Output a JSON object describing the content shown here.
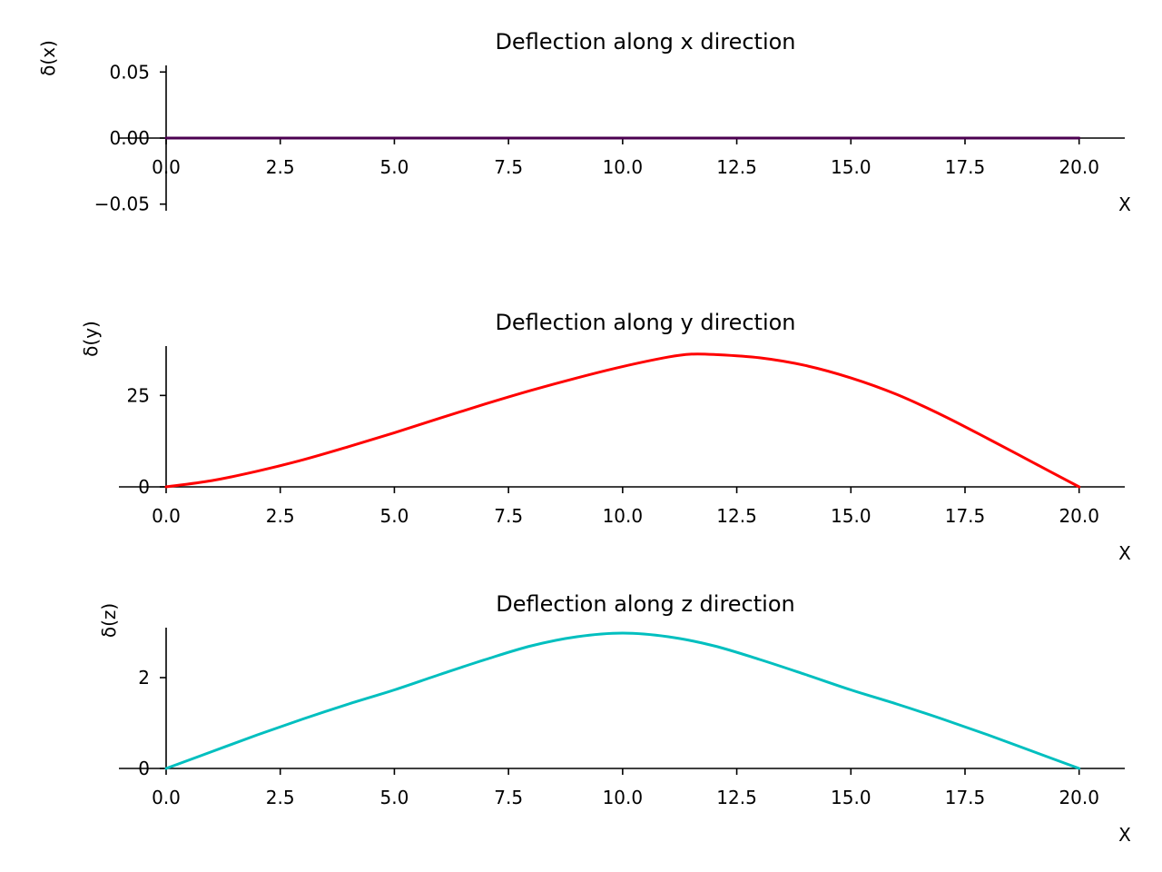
{
  "chart_data": [
    {
      "type": "line",
      "title": "Deflection along x direction",
      "xlabel": "X",
      "ylabel": "δ(x)",
      "xlim": [
        0,
        21
      ],
      "ylim": [
        -0.055,
        0.055
      ],
      "x_ticks": [
        0,
        2.5,
        5,
        7.5,
        10,
        12.5,
        15,
        17.5,
        20
      ],
      "x_tick_labels": [
        "0.0",
        "2.5",
        "5.0",
        "7.5",
        "10.0",
        "12.5",
        "15.0",
        "17.5",
        "20.0"
      ],
      "y_ticks": [
        -0.05,
        0,
        0.05
      ],
      "y_tick_labels": [
        "−0.05",
        "0.00",
        "0.05"
      ],
      "grid": false,
      "series": [
        {
          "color": "#4b0050",
          "x": [
            0,
            2.5,
            5,
            7.5,
            10,
            12.5,
            15,
            17.5,
            20
          ],
          "y": [
            0,
            0,
            0,
            0,
            0,
            0,
            0,
            0,
            0
          ]
        }
      ]
    },
    {
      "type": "line",
      "title": "Deflection along y direction",
      "xlabel": "X",
      "ylabel": "δ(y)",
      "xlim": [
        0,
        21
      ],
      "ylim": [
        0,
        38.5
      ],
      "x_ticks": [
        0,
        2.5,
        5,
        7.5,
        10,
        12.5,
        15,
        17.5,
        20
      ],
      "x_tick_labels": [
        "0.0",
        "2.5",
        "5.0",
        "7.5",
        "10.0",
        "12.5",
        "15.0",
        "17.5",
        "20.0"
      ],
      "y_ticks": [
        0,
        25
      ],
      "y_tick_labels": [
        "0",
        "25"
      ],
      "grid": false,
      "series": [
        {
          "color": "#ff0000",
          "x": [
            0,
            1,
            2,
            3,
            4,
            5,
            6,
            7,
            8,
            9,
            10,
            11,
            11.5,
            12,
            13,
            14,
            15,
            16,
            17,
            18,
            19,
            20
          ],
          "y": [
            0,
            1.7,
            4.3,
            7.4,
            11.0,
            14.8,
            18.8,
            22.7,
            26.4,
            29.8,
            32.9,
            35.5,
            36.3,
            36.2,
            35.3,
            33.2,
            29.8,
            25.3,
            19.6,
            13.2,
            6.6,
            0
          ]
        }
      ]
    },
    {
      "type": "line",
      "title": "Deflection along z direction",
      "xlabel": "X",
      "ylabel": "δ(z)",
      "xlim": [
        0,
        21
      ],
      "ylim": [
        0,
        3.1
      ],
      "x_ticks": [
        0,
        2.5,
        5,
        7.5,
        10,
        12.5,
        15,
        17.5,
        20
      ],
      "x_tick_labels": [
        "0.0",
        "2.5",
        "5.0",
        "7.5",
        "10.0",
        "12.5",
        "15.0",
        "17.5",
        "20.0"
      ],
      "y_ticks": [
        0,
        2
      ],
      "y_tick_labels": [
        "0",
        "2"
      ],
      "grid": false,
      "series": [
        {
          "color": "#00bfbf",
          "x": [
            0,
            1,
            2,
            3,
            4,
            5,
            6,
            7,
            8,
            9,
            10,
            11,
            12,
            13,
            14,
            15,
            16,
            17,
            18,
            19,
            20
          ],
          "y": [
            0,
            0.37,
            0.74,
            1.09,
            1.42,
            1.73,
            2.07,
            2.4,
            2.7,
            2.9,
            2.98,
            2.9,
            2.7,
            2.4,
            2.07,
            1.73,
            1.42,
            1.09,
            0.74,
            0.37,
            0
          ]
        }
      ]
    }
  ]
}
